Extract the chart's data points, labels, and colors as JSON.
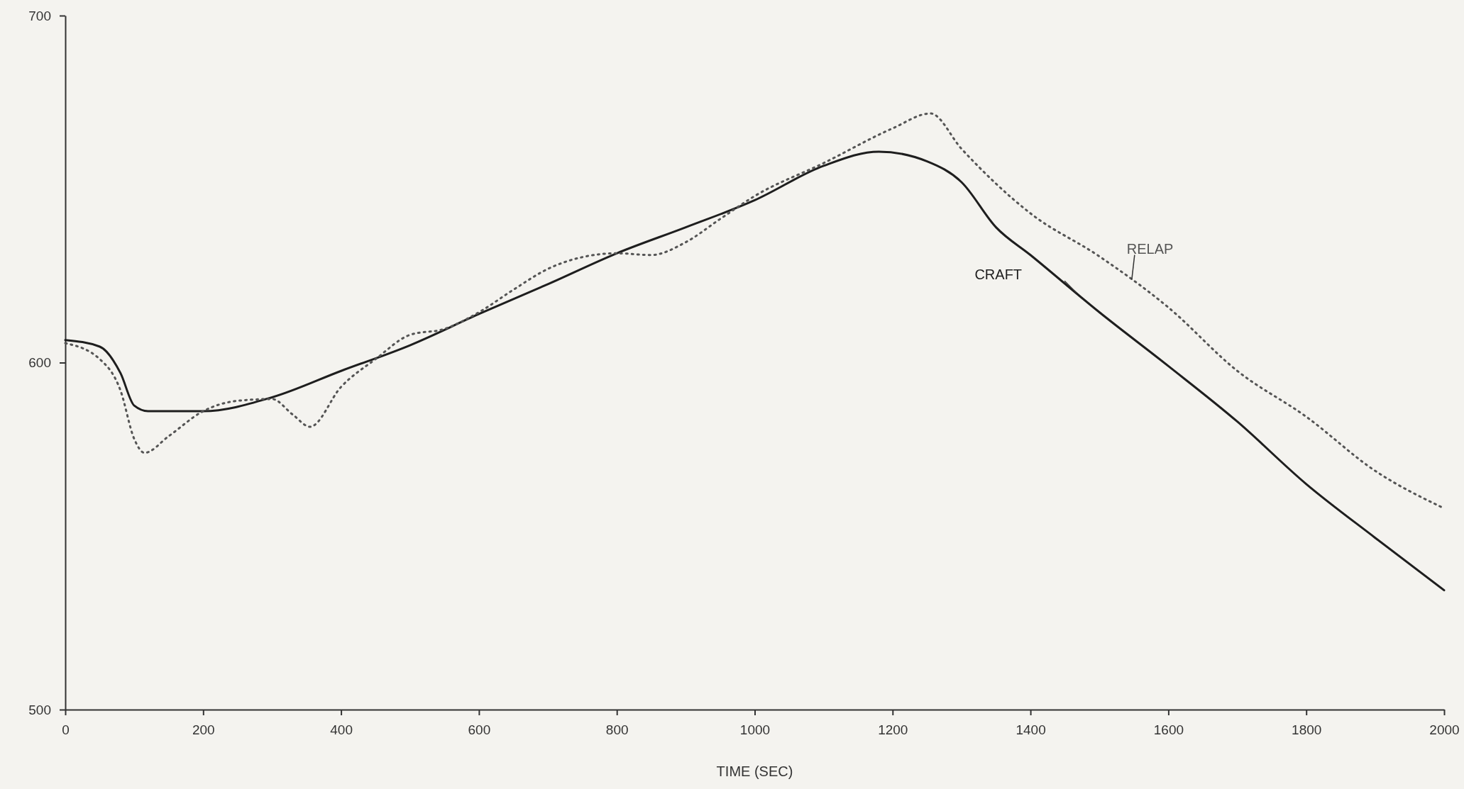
{
  "chart_data": {
    "type": "line",
    "xlabel": "TIME (SEC)",
    "xlim": [
      0,
      2000
    ],
    "xticks": [
      0,
      200,
      400,
      600,
      800,
      1000,
      1200,
      1400,
      1600,
      1800,
      2000
    ],
    "ylim": [
      500,
      700
    ],
    "yticks": [
      500,
      600,
      700
    ],
    "grid": false,
    "series": [
      {
        "name": "CRAFT",
        "color": "#1e1e1e",
        "line_style": "solid",
        "x": [
          0,
          50,
          80,
          100,
          120,
          200,
          300,
          400,
          500,
          600,
          700,
          800,
          900,
          1000,
          1100,
          1180,
          1250,
          1300,
          1350,
          1400,
          1500,
          1600,
          1700,
          1800,
          1900,
          2000
        ],
        "values": [
          606.5,
          604.6,
          597,
          587.6,
          586,
          586,
          590,
          597.6,
          605,
          614,
          622.6,
          631.5,
          639,
          646.8,
          656.7,
          660.8,
          658,
          652,
          639,
          631,
          614.5,
          599,
          583,
          565,
          549.5,
          534.4
        ]
      },
      {
        "name": "RELAP",
        "color": "#555555",
        "line_style": "dotted",
        "x": [
          0,
          50,
          80,
          100,
          115,
          150,
          200,
          250,
          300,
          330,
          355,
          400,
          450,
          500,
          550,
          600,
          650,
          700,
          750,
          800,
          850,
          900,
          950,
          1000,
          1100,
          1200,
          1255,
          1300,
          1400,
          1500,
          1600,
          1700,
          1800,
          1900,
          2000
        ],
        "values": [
          605.6,
          601,
          592,
          578,
          574,
          578.8,
          586,
          589,
          589.5,
          585,
          581.5,
          593,
          601,
          608,
          609.7,
          614.5,
          621,
          627,
          630.4,
          631.5,
          631,
          634.7,
          641.4,
          648,
          657.5,
          667.5,
          671.8,
          661.6,
          643,
          630.6,
          615.9,
          597.6,
          584.4,
          568.8,
          558
        ]
      }
    ]
  }
}
